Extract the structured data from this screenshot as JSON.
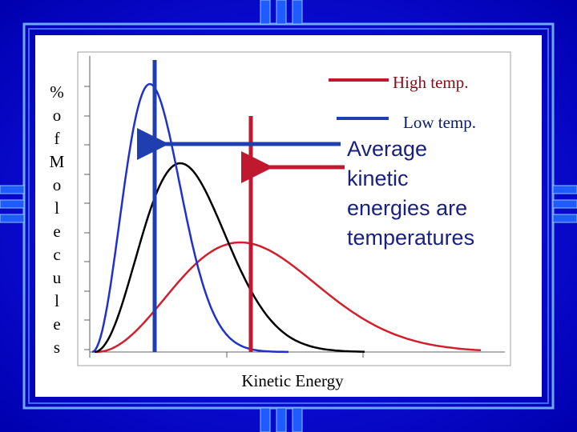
{
  "slide": {
    "y_axis_label_lines": [
      "%",
      "o",
      "f",
      "M",
      "o",
      "l",
      "e",
      "c",
      "u",
      "l",
      "e",
      "s"
    ],
    "x_axis_label": "Kinetic Energy",
    "legend": [
      "High temp.",
      "Low temp."
    ],
    "annotation_lines": [
      "Average",
      "kinetic",
      "energies are",
      "temperatures"
    ]
  }
}
